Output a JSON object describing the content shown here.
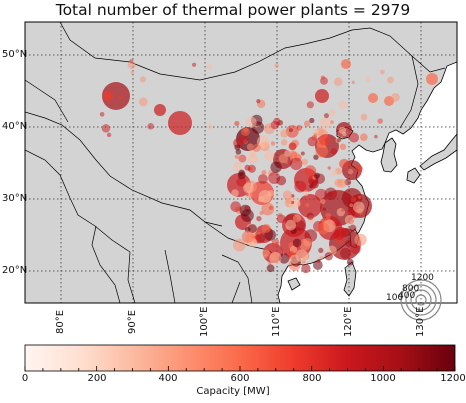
{
  "title": "Total number of thermal power plants = 2979",
  "map": {
    "lat_labels": [
      "50°N",
      "40°N",
      "30°N",
      "20°N"
    ],
    "lat_values": [
      50,
      40,
      30,
      20
    ],
    "lon_labels": [
      "80°E",
      "90°E",
      "100°E",
      "110°E",
      "120°E",
      "130°E"
    ],
    "lon_values": [
      80,
      90,
      100,
      110,
      120,
      130
    ],
    "extent": {
      "lon_min": 75,
      "lon_max": 135,
      "lat_min": 15,
      "lat_max": 55
    },
    "land_color": "#d3d3d3",
    "ocean_color": "#ffffff",
    "grid": true
  },
  "size_legend": {
    "labels": [
      "1200",
      "800",
      "400",
      "100"
    ]
  },
  "colorbar": {
    "label": "Capacity [MW]",
    "tick_labels": [
      "0",
      "200",
      "400",
      "600",
      "800",
      "1000",
      "1200"
    ],
    "tick_values": [
      0,
      200,
      400,
      600,
      800,
      1000,
      1200
    ],
    "min": 0,
    "max": 1200,
    "colormap": [
      "#fff5f0",
      "#fee0d2",
      "#fcbba1",
      "#fc9272",
      "#fb6a4a",
      "#ef3b2c",
      "#cb181d",
      "#a50f15",
      "#67000d"
    ]
  }
}
